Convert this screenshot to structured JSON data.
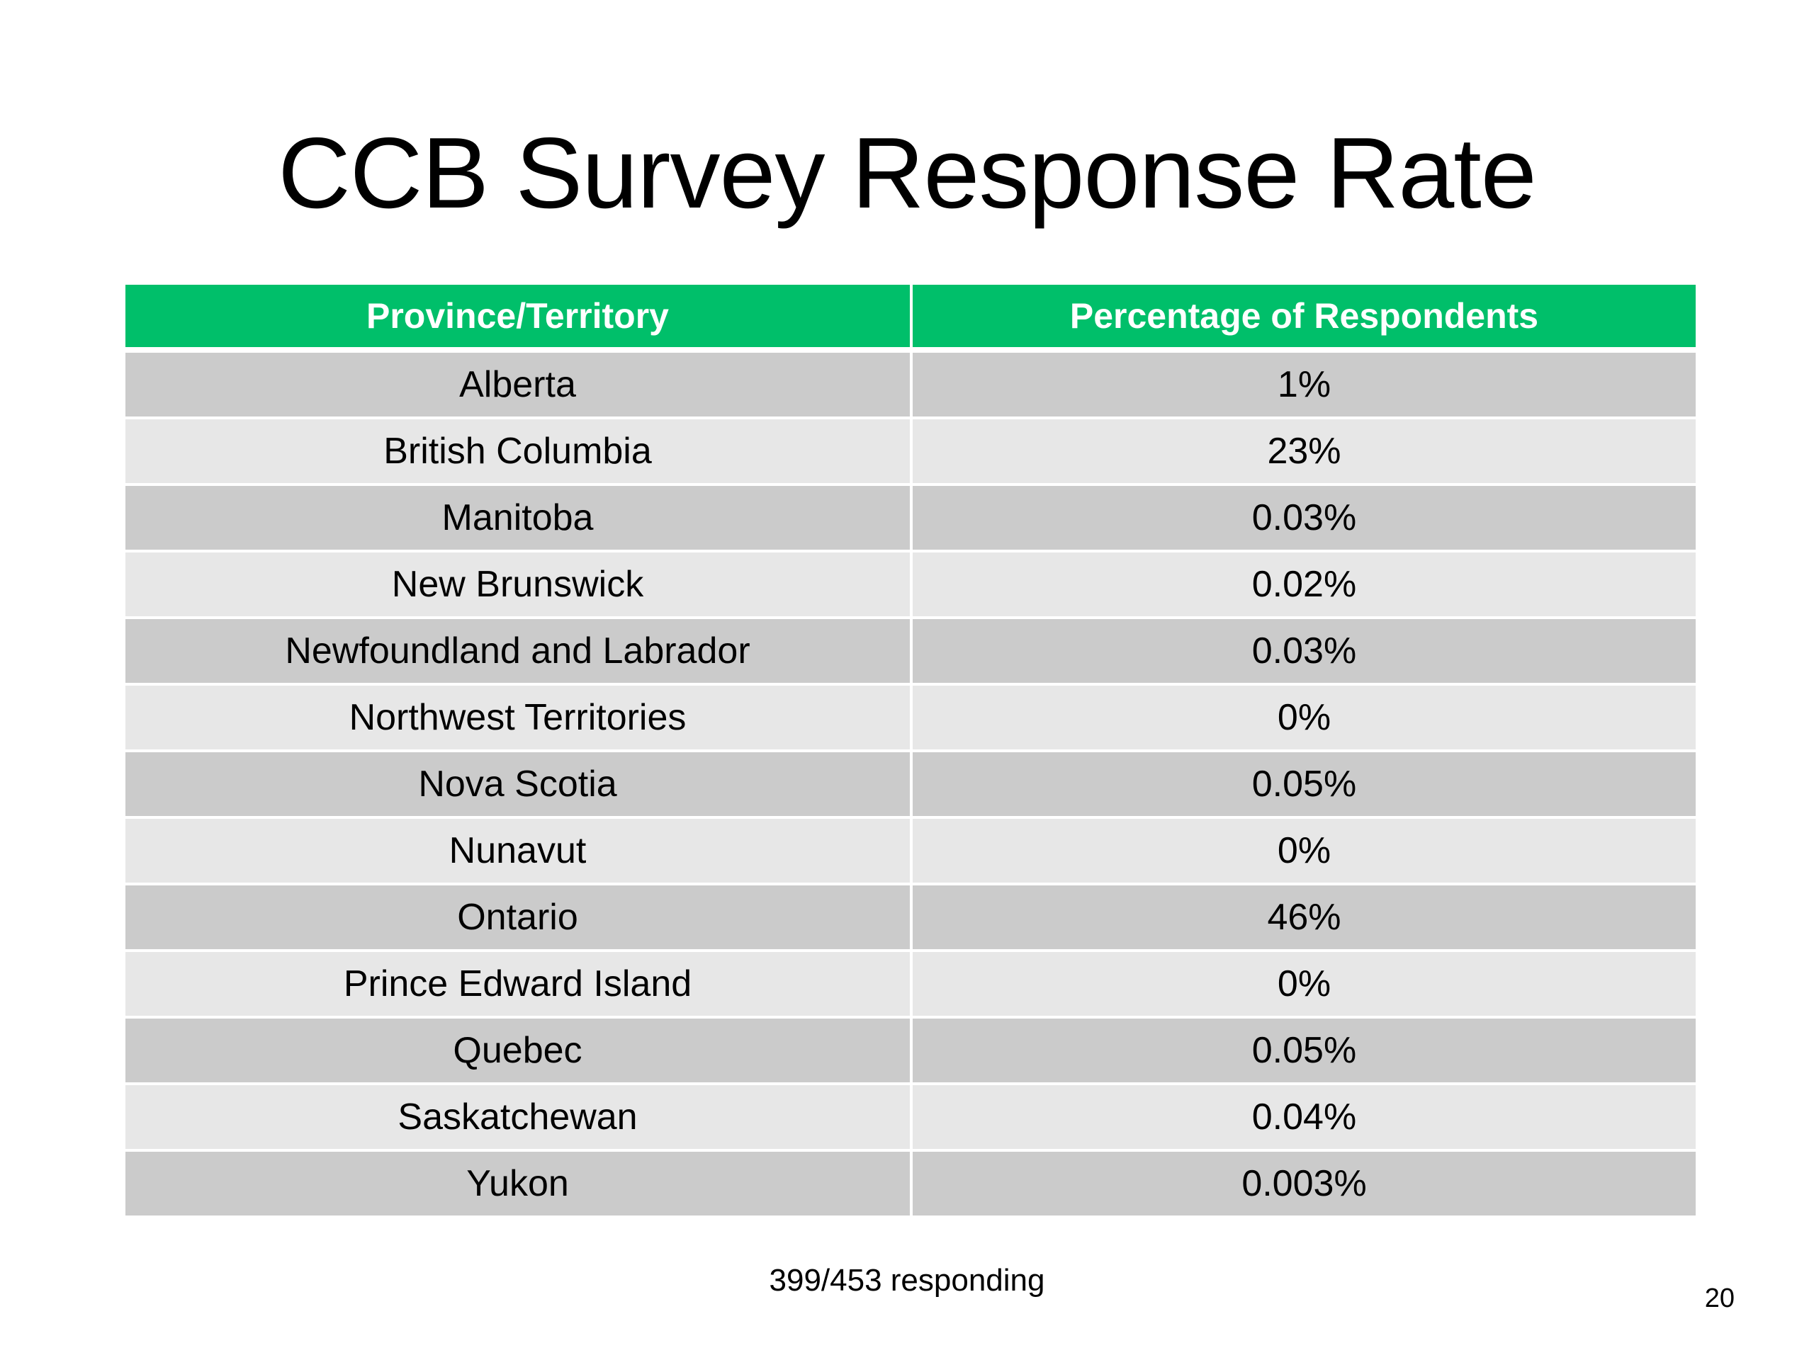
{
  "title": "CCB Survey Response Rate",
  "table": {
    "headers": [
      "Province/Territory",
      "Percentage of Respondents"
    ],
    "rows": [
      [
        "Alberta",
        "1%"
      ],
      [
        "British Columbia",
        "23%"
      ],
      [
        "Manitoba",
        "0.03%"
      ],
      [
        "New Brunswick",
        "0.02%"
      ],
      [
        "Newfoundland and Labrador",
        "0.03%"
      ],
      [
        "Northwest Territories",
        "0%"
      ],
      [
        "Nova Scotia",
        "0.05%"
      ],
      [
        "Nunavut",
        "0%"
      ],
      [
        "Ontario",
        "46%"
      ],
      [
        "Prince Edward Island",
        "0%"
      ],
      [
        "Quebec",
        "0.05%"
      ],
      [
        "Saskatchewan",
        "0.04%"
      ],
      [
        "Yukon",
        "0.003%"
      ]
    ]
  },
  "footnote": "399/453 responding",
  "page_number": "20",
  "colors": {
    "header_bg": "#00bf6a",
    "header_text": "#ffffff",
    "row_dark": "#cbcbcb",
    "row_light": "#e7e7e7"
  }
}
